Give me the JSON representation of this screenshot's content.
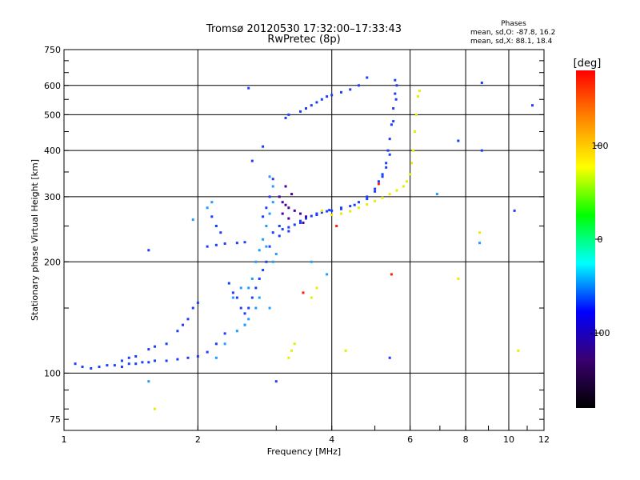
{
  "chart_data": {
    "type": "scatter",
    "title": "Tromsø 20120530 17:32:00–17:33:43",
    "subtitle": "RwPretec (8p)",
    "xlabel": "Frequency [MHz]",
    "ylabel": "Stationary phase Virtual Height [km]",
    "x_scale": "log",
    "y_scale": "log",
    "xlim": [
      1,
      12
    ],
    "ylim": [
      70,
      750
    ],
    "x_ticks": [
      1,
      2,
      4,
      6,
      8,
      10,
      12
    ],
    "y_ticks": [
      75,
      100,
      200,
      300,
      400,
      500,
      600,
      750
    ],
    "x_grid": [
      1,
      2,
      4,
      6,
      8,
      10,
      12
    ],
    "y_grid": [
      100,
      200,
      300,
      400,
      500,
      600
    ],
    "grid": true,
    "phases_box": {
      "title": "Phases",
      "line_o": "mean, sd,O: -87.8, 16.2",
      "line_x": "mean, sd,X:  88.1, 18.4"
    },
    "colorbar": {
      "label": "[deg]",
      "range": [
        -180,
        180
      ],
      "ticks": [
        100,
        0,
        -100
      ],
      "tick_labels": [
        "100",
        "0",
        "-100"
      ],
      "colors": [
        "#ff0000",
        "#ff8800",
        "#ffff00",
        "#00ff00",
        "#00ffff",
        "#0000ff",
        "#3a0070",
        "#000000"
      ]
    },
    "series": [
      {
        "phase_deg": -95,
        "color": "#1a3dff",
        "points": [
          [
            1.06,
            106
          ],
          [
            1.1,
            104
          ],
          [
            1.15,
            103
          ],
          [
            1.2,
            104
          ],
          [
            1.25,
            105
          ],
          [
            1.3,
            105
          ],
          [
            1.35,
            104
          ],
          [
            1.4,
            106
          ],
          [
            1.45,
            106
          ],
          [
            1.5,
            107
          ],
          [
            1.55,
            107
          ],
          [
            1.6,
            108
          ],
          [
            1.7,
            108
          ],
          [
            1.8,
            109
          ],
          [
            1.9,
            110
          ],
          [
            2.0,
            111
          ],
          [
            2.1,
            114
          ],
          [
            2.2,
            120
          ],
          [
            2.3,
            128
          ],
          [
            1.35,
            108
          ],
          [
            1.4,
            110
          ],
          [
            1.45,
            111
          ],
          [
            1.55,
            116
          ],
          [
            1.6,
            118
          ],
          [
            1.7,
            120
          ],
          [
            1.8,
            130
          ],
          [
            1.85,
            135
          ],
          [
            1.9,
            140
          ],
          [
            1.95,
            150
          ],
          [
            2.0,
            155
          ],
          [
            1.55,
            215
          ],
          [
            2.1,
            220
          ],
          [
            2.2,
            222
          ],
          [
            2.3,
            224
          ],
          [
            2.45,
            225
          ],
          [
            2.55,
            226
          ],
          [
            2.15,
            265
          ],
          [
            2.2,
            250
          ],
          [
            2.25,
            240
          ],
          [
            2.35,
            175
          ],
          [
            2.4,
            165
          ],
          [
            2.45,
            160
          ],
          [
            2.5,
            150
          ],
          [
            2.55,
            145
          ],
          [
            2.6,
            150
          ],
          [
            2.65,
            160
          ],
          [
            2.7,
            170
          ],
          [
            2.75,
            180
          ],
          [
            2.8,
            190
          ],
          [
            2.85,
            200
          ],
          [
            2.9,
            220
          ],
          [
            2.95,
            240
          ],
          [
            2.8,
            265
          ],
          [
            2.85,
            280
          ],
          [
            2.9,
            300
          ],
          [
            2.95,
            335
          ],
          [
            2.6,
            590
          ],
          [
            2.8,
            410
          ],
          [
            2.65,
            375
          ],
          [
            3.15,
            490
          ],
          [
            3.2,
            500
          ],
          [
            3.4,
            510
          ],
          [
            3.5,
            520
          ],
          [
            3.6,
            530
          ],
          [
            3.7,
            540
          ],
          [
            3.8,
            550
          ],
          [
            3.9,
            560
          ],
          [
            4.0,
            565
          ],
          [
            4.2,
            575
          ],
          [
            4.4,
            585
          ],
          [
            4.6,
            600
          ],
          [
            4.8,
            630
          ],
          [
            3.05,
            250
          ],
          [
            3.1,
            245
          ],
          [
            3.2,
            248
          ],
          [
            3.3,
            252
          ],
          [
            3.4,
            258
          ],
          [
            3.5,
            262
          ],
          [
            3.6,
            266
          ],
          [
            3.7,
            270
          ],
          [
            3.8,
            272
          ],
          [
            3.9,
            274
          ],
          [
            4.0,
            275
          ],
          [
            4.2,
            278
          ],
          [
            4.4,
            283
          ],
          [
            4.6,
            290
          ],
          [
            4.8,
            300
          ],
          [
            5.0,
            315
          ],
          [
            5.1,
            330
          ],
          [
            5.2,
            345
          ],
          [
            5.3,
            370
          ],
          [
            5.35,
            400
          ],
          [
            5.4,
            430
          ],
          [
            5.45,
            470
          ],
          [
            5.5,
            520
          ],
          [
            5.55,
            570
          ],
          [
            5.55,
            620
          ],
          [
            5.6,
            600
          ],
          [
            5.58,
            550
          ],
          [
            5.5,
            480
          ],
          [
            5.4,
            390
          ],
          [
            5.3,
            360
          ],
          [
            5.2,
            340
          ],
          [
            5.0,
            310
          ],
          [
            4.8,
            296
          ],
          [
            4.5,
            285
          ],
          [
            4.2,
            280
          ],
          [
            3.95,
            276
          ],
          [
            3.7,
            268
          ],
          [
            3.4,
            255
          ],
          [
            3.2,
            242
          ],
          [
            3.05,
            235
          ],
          [
            3.0,
            95
          ],
          [
            5.4,
            110
          ],
          [
            8.7,
            610
          ],
          [
            8.7,
            400
          ],
          [
            11.3,
            530
          ],
          [
            10.3,
            275
          ],
          [
            7.7,
            425
          ]
        ]
      },
      {
        "phase_deg": -70,
        "color": "#1e9cff",
        "points": [
          [
            2.65,
            180
          ],
          [
            2.7,
            200
          ],
          [
            2.75,
            215
          ],
          [
            2.8,
            230
          ],
          [
            2.85,
            250
          ],
          [
            2.9,
            270
          ],
          [
            2.95,
            290
          ],
          [
            2.95,
            320
          ],
          [
            2.9,
            340
          ],
          [
            2.85,
            220
          ],
          [
            2.75,
            160
          ],
          [
            2.7,
            150
          ],
          [
            2.6,
            140
          ],
          [
            2.55,
            135
          ],
          [
            2.45,
            130
          ],
          [
            2.3,
            120
          ],
          [
            2.4,
            160
          ],
          [
            2.5,
            170
          ],
          [
            2.6,
            170
          ],
          [
            2.9,
            150
          ],
          [
            2.95,
            200
          ],
          [
            3.0,
            210
          ],
          [
            2.55,
            135
          ],
          [
            2.2,
            110
          ],
          [
            1.95,
            260
          ],
          [
            2.1,
            280
          ],
          [
            2.15,
            290
          ],
          [
            3.6,
            200
          ],
          [
            3.9,
            185
          ],
          [
            6.9,
            305
          ],
          [
            8.6,
            225
          ],
          [
            1.55,
            95
          ]
        ]
      },
      {
        "phase_deg": -130,
        "color": "#4a00a0",
        "points": [
          [
            3.05,
            300
          ],
          [
            3.1,
            290
          ],
          [
            3.15,
            285
          ],
          [
            3.2,
            280
          ],
          [
            3.3,
            275
          ],
          [
            3.4,
            270
          ],
          [
            3.5,
            265
          ],
          [
            3.15,
            320
          ],
          [
            3.25,
            305
          ],
          [
            3.1,
            270
          ],
          [
            3.2,
            262
          ],
          [
            3.45,
            255
          ]
        ]
      },
      {
        "phase_deg": 95,
        "color": "#e6ee00",
        "points": [
          [
            3.8,
            275
          ],
          [
            4.0,
            268
          ],
          [
            4.2,
            270
          ],
          [
            4.4,
            274
          ],
          [
            4.6,
            280
          ],
          [
            4.8,
            286
          ],
          [
            5.0,
            292
          ],
          [
            5.2,
            298
          ],
          [
            5.4,
            305
          ],
          [
            5.6,
            312
          ],
          [
            5.8,
            320
          ],
          [
            5.9,
            330
          ],
          [
            6.0,
            345
          ],
          [
            6.05,
            370
          ],
          [
            6.1,
            400
          ],
          [
            6.15,
            450
          ],
          [
            6.2,
            500
          ],
          [
            6.25,
            560
          ],
          [
            6.3,
            580
          ],
          [
            3.7,
            170
          ],
          [
            3.6,
            160
          ],
          [
            3.3,
            120
          ],
          [
            3.25,
            115
          ],
          [
            3.2,
            110
          ],
          [
            4.3,
            115
          ],
          [
            10.5,
            115
          ],
          [
            8.6,
            240
          ],
          [
            7.7,
            180
          ],
          [
            1.6,
            80
          ]
        ]
      },
      {
        "phase_deg": 150,
        "color": "#ff2000",
        "points": [
          [
            3.45,
            165
          ],
          [
            4.1,
            250
          ],
          [
            5.45,
            185
          ],
          [
            5.1,
            325
          ]
        ]
      }
    ]
  }
}
